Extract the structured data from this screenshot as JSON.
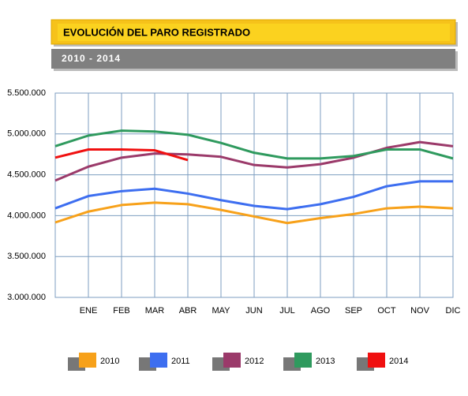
{
  "chart_data": {
    "type": "line",
    "title": "EVOLUCIÓN DEL PARO REGISTRADO",
    "subtitle": "2010 - 2014",
    "categories": [
      null,
      "ENE",
      "FEB",
      "MAR",
      "ABR",
      "MAY",
      "JUN",
      "JUL",
      "AGO",
      "SEP",
      "OCT",
      "NOV",
      "DIC"
    ],
    "series": [
      {
        "name": "2010",
        "color": "#f7a11a",
        "values": [
          3917000,
          4050000,
          4130000,
          4160000,
          4140000,
          4070000,
          3990000,
          3910000,
          3970000,
          4020000,
          4090000,
          4110000,
          4090000
        ]
      },
      {
        "name": "2011",
        "color": "#3d6ef0",
        "values": [
          4090000,
          4240000,
          4300000,
          4330000,
          4270000,
          4190000,
          4120000,
          4080000,
          4140000,
          4230000,
          4360000,
          4420000,
          4420000
        ]
      },
      {
        "name": "2012",
        "color": "#9b3a6a",
        "values": [
          4430000,
          4600000,
          4710000,
          4760000,
          4750000,
          4720000,
          4620000,
          4590000,
          4630000,
          4710000,
          4830000,
          4900000,
          4850000
        ]
      },
      {
        "name": "2013",
        "color": "#2f9a5e",
        "values": [
          4850000,
          4980000,
          5040000,
          5030000,
          4990000,
          4890000,
          4770000,
          4700000,
          4700000,
          4730000,
          4810000,
          4810000,
          4700000
        ]
      },
      {
        "name": "2014",
        "color": "#f01010",
        "values": [
          4710000,
          4810000,
          4810000,
          4800000,
          4680000,
          null,
          null,
          null,
          null,
          null,
          null,
          null,
          null
        ]
      }
    ],
    "ylim": [
      3000000,
      5500000
    ],
    "yticks": [
      {
        "value": 3000000,
        "label": "3.000.000"
      },
      {
        "value": 3500000,
        "label": "3.500.000"
      },
      {
        "value": 4000000,
        "label": "4.000.000"
      },
      {
        "value": 4500000,
        "label": "4.500.000"
      },
      {
        "value": 5000000,
        "label": "5.000.000"
      },
      {
        "value": 5500000,
        "label": "5.500.000"
      }
    ],
    "grid": true,
    "legend": "bottom"
  }
}
